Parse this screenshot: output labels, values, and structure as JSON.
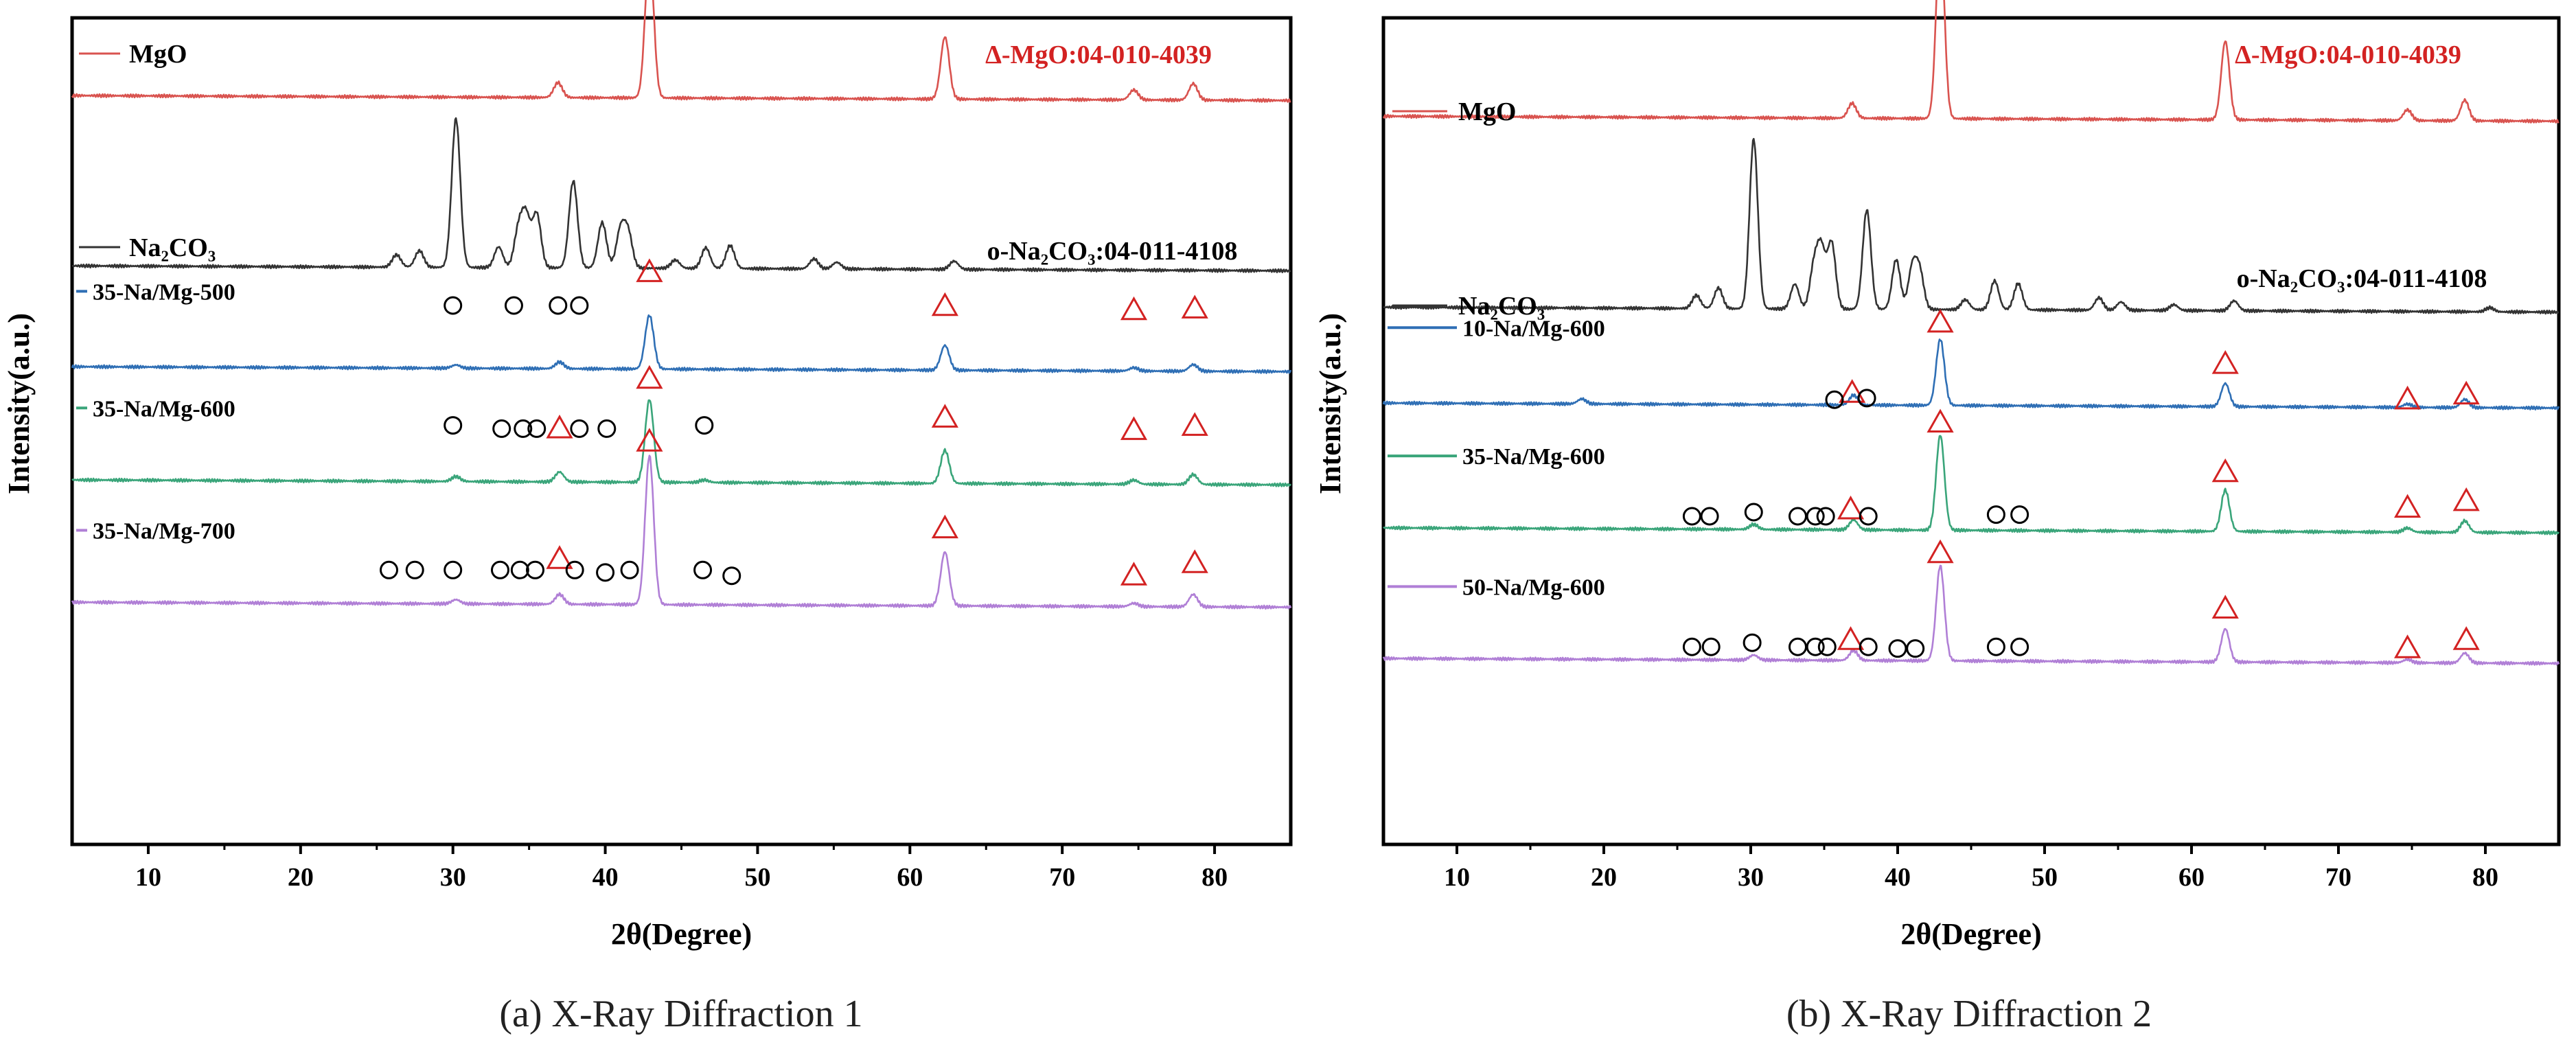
{
  "colors": {
    "mgo": "#d9534f",
    "na2co3": "#333333",
    "500": "#2f6fb5",
    "600": "#3aa57a",
    "700": "#b07fd6",
    "ref_red": "#d32222",
    "frame": "#000000"
  },
  "chart_data": [
    {
      "type": "line",
      "panel": "a",
      "caption": "(a)  X-Ray Diffraction 1",
      "xlabel": "2θ(Degree)",
      "ylabel": "Intensity(a.u.)",
      "xlim": [
        5,
        85
      ],
      "xticks": [
        "10",
        "20",
        "30",
        "40",
        "50",
        "60",
        "70",
        "80"
      ],
      "ref_mgo": "Δ-MgO:04-010-4039",
      "ref_na2co3": "o-Na₂CO₃:04-011-4108",
      "series": [
        {
          "name": "MgO",
          "color_key": "mgo",
          "base": 0.1,
          "peaks": [
            [
              36.9,
              0.018
            ],
            [
              42.9,
              0.175
            ],
            [
              62.3,
              0.075
            ],
            [
              74.7,
              0.012
            ],
            [
              78.6,
              0.02
            ]
          ],
          "label_style": "legend",
          "triangles": [],
          "circles": []
        },
        {
          "name": "Na₂CO₃",
          "color_key": "na2co3",
          "base": 0.306,
          "peaks": [
            [
              26.3,
              0.015
            ],
            [
              27.8,
              0.02
            ],
            [
              30.2,
              0.18
            ],
            [
              33.0,
              0.025
            ],
            [
              34.3,
              0.045
            ],
            [
              34.8,
              0.06
            ],
            [
              35.5,
              0.065
            ],
            [
              37.9,
              0.105
            ],
            [
              39.8,
              0.055
            ],
            [
              41.0,
              0.045
            ],
            [
              41.5,
              0.042
            ],
            [
              44.6,
              0.01
            ],
            [
              46.6,
              0.025
            ],
            [
              48.2,
              0.028
            ],
            [
              53.7,
              0.012
            ],
            [
              55.2,
              0.008
            ],
            [
              62.9,
              0.01
            ]
          ],
          "label_style": "legend",
          "triangles": [],
          "circles": []
        },
        {
          "name": "35-Na/Mg-500",
          "color_key": "500",
          "base": 0.428,
          "peaks": [
            [
              30.2,
              0.004
            ],
            [
              37.0,
              0.008
            ],
            [
              42.9,
              0.065
            ],
            [
              62.3,
              0.03
            ],
            [
              74.7,
              0.004
            ],
            [
              78.6,
              0.008
            ]
          ],
          "label_style": "tag",
          "triangles": [
            [
              42.9,
              0.122
            ],
            [
              62.3,
              0.081
            ],
            [
              74.7,
              0.076
            ],
            [
              78.7,
              0.078
            ]
          ],
          "circles": [
            [
              30.0,
              0.08
            ],
            [
              34.0,
              0.08
            ],
            [
              36.9,
              0.08
            ],
            [
              38.3,
              0.08
            ]
          ]
        },
        {
          "name": "35-Na/Mg-600",
          "color_key": "600",
          "base": 0.565,
          "peaks": [
            [
              30.2,
              0.006
            ],
            [
              37.0,
              0.012
            ],
            [
              42.9,
              0.1
            ],
            [
              46.5,
              0.003
            ],
            [
              62.3,
              0.04
            ],
            [
              74.7,
              0.005
            ],
            [
              78.6,
              0.012
            ]
          ],
          "label_style": "tag",
          "triangles": [
            [
              42.9,
              0.13
            ],
            [
              62.3,
              0.083
            ],
            [
              74.7,
              0.068
            ],
            [
              78.7,
              0.073
            ],
            [
              37.0,
              0.07
            ]
          ],
          "circles": [
            [
              30.0,
              0.072
            ],
            [
              33.2,
              0.068
            ],
            [
              34.6,
              0.068
            ],
            [
              35.5,
              0.068
            ],
            [
              38.3,
              0.068
            ],
            [
              40.1,
              0.068
            ],
            [
              46.5,
              0.072
            ]
          ]
        },
        {
          "name": "35-Na/Mg-700",
          "color_key": "700",
          "base": 0.713,
          "peaks": [
            [
              30.2,
              0.005
            ],
            [
              37.0,
              0.012
            ],
            [
              42.9,
              0.18
            ],
            [
              62.3,
              0.065
            ],
            [
              74.7,
              0.004
            ],
            [
              78.6,
              0.015
            ]
          ],
          "label_style": "tag",
          "triangles": [
            [
              42.9,
              0.202
            ],
            [
              62.3,
              0.097
            ],
            [
              74.7,
              0.04
            ],
            [
              78.7,
              0.055
            ],
            [
              37.0,
              0.06
            ]
          ],
          "circles": [
            [
              25.8,
              0.045
            ],
            [
              27.5,
              0.045
            ],
            [
              30.0,
              0.045
            ],
            [
              33.1,
              0.045
            ],
            [
              34.4,
              0.045
            ],
            [
              35.4,
              0.045
            ],
            [
              38.0,
              0.045
            ],
            [
              40.0,
              0.042
            ],
            [
              41.6,
              0.045
            ],
            [
              46.4,
              0.045
            ],
            [
              48.3,
              0.038
            ]
          ]
        }
      ]
    },
    {
      "type": "line",
      "panel": "b",
      "caption": "(b) X-Ray Diffraction 2",
      "xlabel": "2θ(Degree)",
      "ylabel": "Intensity(a.u.)",
      "xlim": [
        5,
        85
      ],
      "xticks": [
        "10",
        "20",
        "30",
        "40",
        "50",
        "60",
        "70",
        "80"
      ],
      "ref_mgo": "Δ-MgO:04-010-4039",
      "ref_na2co3": "o-Na₂CO₃:04-011-4108",
      "series": [
        {
          "name": "MgO",
          "color_key": "mgo",
          "base": 0.125,
          "peaks": [
            [
              36.9,
              0.018
            ],
            [
              42.9,
              0.225
            ],
            [
              62.3,
              0.095
            ],
            [
              74.7,
              0.013
            ],
            [
              78.6,
              0.025
            ]
          ],
          "label_style": "legend",
          "triangles": [],
          "circles": []
        },
        {
          "name": "Na₂CO₃",
          "color_key": "na2co3",
          "base": 0.356,
          "peaks": [
            [
              26.3,
              0.016
            ],
            [
              27.8,
              0.025
            ],
            [
              30.2,
              0.205
            ],
            [
              33.0,
              0.03
            ],
            [
              34.3,
              0.05
            ],
            [
              34.8,
              0.07
            ],
            [
              35.5,
              0.08
            ],
            [
              37.9,
              0.12
            ],
            [
              39.9,
              0.06
            ],
            [
              41.0,
              0.05
            ],
            [
              41.5,
              0.045
            ],
            [
              44.6,
              0.012
            ],
            [
              46.6,
              0.035
            ],
            [
              48.2,
              0.032
            ],
            [
              53.7,
              0.015
            ],
            [
              55.2,
              0.01
            ],
            [
              58.8,
              0.007
            ],
            [
              62.9,
              0.012
            ],
            [
              80.3,
              0.005
            ]
          ],
          "label_style": "legend",
          "triangles": [],
          "circles": []
        },
        {
          "name": "10-Na/Mg-600",
          "color_key": "500",
          "base": 0.472,
          "peaks": [
            [
              18.5,
              0.006
            ],
            [
              37.0,
              0.012
            ],
            [
              42.9,
              0.08
            ],
            [
              62.3,
              0.028
            ],
            [
              74.7,
              0.004
            ],
            [
              78.6,
              0.01
            ]
          ],
          "label_style": "tag",
          "triangles": [
            [
              42.9,
              0.105
            ],
            [
              62.3,
              0.055
            ],
            [
              74.7,
              0.012
            ],
            [
              78.7,
              0.018
            ],
            [
              36.9,
              0.02
            ]
          ],
          "circles": [
            [
              35.7,
              0.01
            ],
            [
              37.9,
              0.012
            ]
          ]
        },
        {
          "name": "35-Na/Mg-600",
          "color_key": "600",
          "base": 0.623,
          "peaks": [
            [
              30.2,
              0.006
            ],
            [
              37.0,
              0.012
            ],
            [
              42.9,
              0.115
            ],
            [
              62.3,
              0.05
            ],
            [
              74.7,
              0.005
            ],
            [
              78.6,
              0.014
            ]
          ],
          "label_style": "tag",
          "triangles": [
            [
              42.9,
              0.135
            ],
            [
              62.3,
              0.075
            ],
            [
              74.7,
              0.032
            ],
            [
              78.7,
              0.04
            ],
            [
              36.8,
              0.03
            ]
          ],
          "circles": [
            [
              26.0,
              0.02
            ],
            [
              27.2,
              0.02
            ],
            [
              30.2,
              0.025
            ],
            [
              33.2,
              0.02
            ],
            [
              34.4,
              0.02
            ],
            [
              35.1,
              0.02
            ],
            [
              38.0,
              0.02
            ],
            [
              46.7,
              0.022
            ],
            [
              48.3,
              0.022
            ]
          ]
        },
        {
          "name": "50-Na/Mg-600",
          "color_key": "700",
          "base": 0.781,
          "peaks": [
            [
              30.2,
              0.006
            ],
            [
              37.0,
              0.012
            ],
            [
              42.9,
              0.115
            ],
            [
              62.3,
              0.04
            ],
            [
              74.7,
              0.004
            ],
            [
              78.6,
              0.012
            ]
          ],
          "label_style": "tag",
          "triangles": [
            [
              42.9,
              0.135
            ],
            [
              62.3,
              0.068
            ],
            [
              74.7,
              0.02
            ],
            [
              78.7,
              0.03
            ],
            [
              36.8,
              0.03
            ]
          ],
          "circles": [
            [
              26.0,
              0.02
            ],
            [
              27.3,
              0.02
            ],
            [
              30.1,
              0.025
            ],
            [
              33.2,
              0.02
            ],
            [
              34.4,
              0.02
            ],
            [
              35.2,
              0.02
            ],
            [
              38.0,
              0.02
            ],
            [
              40.0,
              0.018
            ],
            [
              41.2,
              0.018
            ],
            [
              46.7,
              0.02
            ],
            [
              48.3,
              0.02
            ]
          ]
        }
      ]
    }
  ]
}
